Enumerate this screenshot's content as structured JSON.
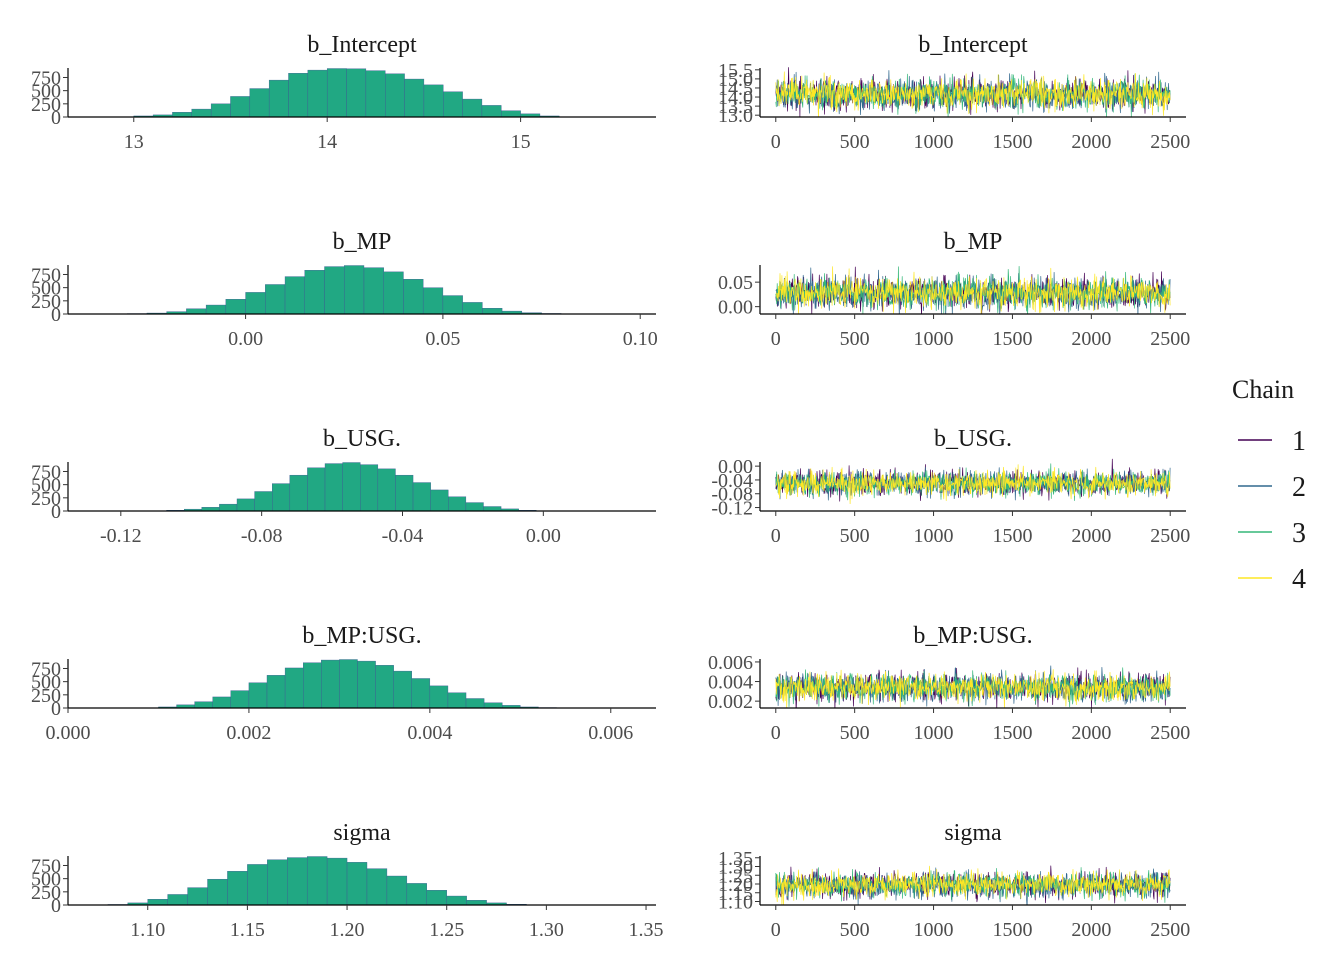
{
  "legend": {
    "title": "Chain",
    "entries": [
      {
        "label": "1",
        "color": "#440154"
      },
      {
        "label": "2",
        "color": "#31688e"
      },
      {
        "label": "3",
        "color": "#35b779"
      },
      {
        "label": "4",
        "color": "#fde725"
      }
    ]
  },
  "hist_color": "#21a883",
  "hist_edge": "#3b5b92",
  "chart_data": [
    {
      "type": "bar",
      "title": "b_Intercept",
      "xlim": [
        12.66,
        15.7
      ],
      "xticks": [
        13,
        14,
        15
      ],
      "xtick_labels": [
        "13",
        "14",
        "15"
      ],
      "ylim": [
        0,
        930
      ],
      "yticks": [
        0,
        250,
        500,
        750
      ],
      "ytick_labels": [
        "0",
        "250",
        "500",
        "750"
      ],
      "bin_edges": [
        12.9,
        13.0,
        13.1,
        13.2,
        13.3,
        13.4,
        13.5,
        13.6,
        13.7,
        13.8,
        13.9,
        14.0,
        14.1,
        14.2,
        14.3,
        14.4,
        14.5,
        14.6,
        14.7,
        14.8,
        14.9,
        15.0,
        15.1,
        15.2,
        15.3
      ],
      "values": [
        5,
        20,
        40,
        90,
        150,
        250,
        390,
        540,
        700,
        830,
        890,
        920,
        915,
        880,
        820,
        720,
        610,
        480,
        340,
        220,
        120,
        60,
        20,
        5
      ]
    },
    {
      "type": "line",
      "title": "b_Intercept",
      "xlim": [
        -100,
        2600
      ],
      "xticks": [
        0,
        500,
        1000,
        1500,
        2000,
        2500
      ],
      "xtick_labels": [
        "0",
        "500",
        "1000",
        "1500",
        "2000",
        "2500"
      ],
      "ylim": [
        12.9,
        15.6
      ],
      "yticks": [
        13.0,
        13.5,
        14.0,
        14.5,
        15.0,
        15.5
      ],
      "ytick_labels": [
        "13.0",
        "13.5",
        "14.0",
        "14.5",
        "15.0",
        "15.5"
      ],
      "center": 14.15,
      "spread": 0.42,
      "draws": 2500,
      "series": [
        {
          "name": "1"
        },
        {
          "name": "2"
        },
        {
          "name": "3"
        },
        {
          "name": "4"
        }
      ]
    },
    {
      "type": "bar",
      "title": "b_MP",
      "xlim": [
        -0.045,
        0.104
      ],
      "xticks": [
        0.0,
        0.05,
        0.1
      ],
      "xtick_labels": [
        "0.00",
        "0.05",
        "0.10"
      ],
      "ylim": [
        0,
        930
      ],
      "yticks": [
        0,
        250,
        500,
        750
      ],
      "ytick_labels": [
        "0",
        "250",
        "500",
        "750"
      ],
      "bin_edges": [
        -0.035,
        -0.03,
        -0.025,
        -0.02,
        -0.015,
        -0.01,
        -0.005,
        0.0,
        0.005,
        0.01,
        0.015,
        0.02,
        0.025,
        0.03,
        0.035,
        0.04,
        0.045,
        0.05,
        0.055,
        0.06,
        0.065,
        0.07,
        0.075,
        0.08,
        0.085
      ],
      "values": [
        3,
        8,
        18,
        45,
        100,
        170,
        280,
        410,
        560,
        710,
        830,
        900,
        920,
        880,
        800,
        660,
        500,
        350,
        220,
        110,
        55,
        25,
        10,
        4
      ]
    },
    {
      "type": "line",
      "title": "b_MP",
      "xlim": [
        -100,
        2600
      ],
      "xticks": [
        0,
        500,
        1000,
        1500,
        2000,
        2500
      ],
      "xtick_labels": [
        "0",
        "500",
        "1000",
        "1500",
        "2000",
        "2500"
      ],
      "ylim": [
        -0.015,
        0.085
      ],
      "yticks": [
        0.0,
        0.05
      ],
      "ytick_labels": [
        "0.00",
        "0.05"
      ],
      "center": 0.028,
      "spread": 0.016,
      "draws": 2500,
      "series": [
        {
          "name": "1"
        },
        {
          "name": "2"
        },
        {
          "name": "3"
        },
        {
          "name": "4"
        }
      ]
    },
    {
      "type": "bar",
      "title": "b_USG.",
      "xlim": [
        -0.135,
        0.032
      ],
      "xticks": [
        -0.12,
        -0.08,
        -0.04,
        0.0
      ],
      "xtick_labels": [
        "-0.12",
        "-0.08",
        "-0.04",
        "0.00"
      ],
      "ylim": [
        0,
        930
      ],
      "yticks": [
        0,
        250,
        500,
        750
      ],
      "ytick_labels": [
        "0",
        "250",
        "500",
        "750"
      ],
      "bin_edges": [
        -0.112,
        -0.107,
        -0.102,
        -0.097,
        -0.092,
        -0.087,
        -0.082,
        -0.077,
        -0.072,
        -0.067,
        -0.062,
        -0.057,
        -0.052,
        -0.047,
        -0.042,
        -0.037,
        -0.032,
        -0.027,
        -0.022,
        -0.017,
        -0.012,
        -0.007,
        -0.002,
        0.003
      ],
      "values": [
        5,
        15,
        35,
        70,
        130,
        230,
        370,
        520,
        680,
        820,
        900,
        920,
        880,
        800,
        680,
        540,
        400,
        270,
        160,
        85,
        40,
        15,
        5
      ]
    },
    {
      "type": "line",
      "title": "b_USG.",
      "xlim": [
        -100,
        2600
      ],
      "xticks": [
        0,
        500,
        1000,
        1500,
        2000,
        2500
      ],
      "xtick_labels": [
        "0",
        "500",
        "1000",
        "1500",
        "2000",
        "2500"
      ],
      "ylim": [
        -0.13,
        0.012
      ],
      "yticks": [
        -0.12,
        -0.08,
        -0.04,
        0.0
      ],
      "ytick_labels": [
        "-0.12",
        "-0.08",
        "-0.04",
        "0.00"
      ],
      "center": -0.05,
      "spread": 0.018,
      "draws": 2500,
      "series": [
        {
          "name": "1"
        },
        {
          "name": "2"
        },
        {
          "name": "3"
        },
        {
          "name": "4"
        }
      ]
    },
    {
      "type": "bar",
      "title": "b_MP:USG.",
      "xlim": [
        0.0,
        0.0065
      ],
      "xticks": [
        0.0,
        0.002,
        0.004,
        0.006
      ],
      "xtick_labels": [
        "0.000",
        "0.002",
        "0.004",
        "0.006"
      ],
      "ylim": [
        0,
        930
      ],
      "yticks": [
        0,
        250,
        500,
        750
      ],
      "ytick_labels": [
        "0",
        "250",
        "500",
        "750"
      ],
      "bin_edges": [
        0.001,
        0.0012,
        0.0014,
        0.0016,
        0.0018,
        0.002,
        0.0022,
        0.0024,
        0.0026,
        0.0028,
        0.003,
        0.0032,
        0.0034,
        0.0036,
        0.0038,
        0.004,
        0.0042,
        0.0044,
        0.0046,
        0.0048,
        0.005,
        0.0052,
        0.0054,
        0.0056
      ],
      "values": [
        20,
        60,
        120,
        210,
        330,
        480,
        620,
        760,
        860,
        910,
        920,
        890,
        810,
        700,
        560,
        420,
        290,
        180,
        100,
        50,
        20,
        8,
        3
      ]
    },
    {
      "type": "line",
      "title": "b_MP:USG.",
      "xlim": [
        -100,
        2600
      ],
      "xticks": [
        0,
        500,
        1000,
        1500,
        2000,
        2500
      ],
      "xtick_labels": [
        "0",
        "500",
        "1000",
        "1500",
        "2000",
        "2500"
      ],
      "ylim": [
        0.0013,
        0.0063
      ],
      "yticks": [
        0.002,
        0.004,
        0.006
      ],
      "ytick_labels": [
        "0.002",
        "0.004",
        "0.006"
      ],
      "center": 0.0034,
      "spread": 0.0007,
      "draws": 2500,
      "series": [
        {
          "name": "1"
        },
        {
          "name": "2"
        },
        {
          "name": "3"
        },
        {
          "name": "4"
        }
      ]
    },
    {
      "type": "bar",
      "title": "sigma",
      "xlim": [
        1.06,
        1.355
      ],
      "xticks": [
        1.1,
        1.15,
        1.2,
        1.25,
        1.3,
        1.35
      ],
      "xtick_labels": [
        "1.10",
        "1.15",
        "1.20",
        "1.25",
        "1.30",
        "1.35"
      ],
      "ylim": [
        0,
        930
      ],
      "yticks": [
        0,
        250,
        500,
        750
      ],
      "ytick_labels": [
        "0",
        "250",
        "500",
        "750"
      ],
      "bin_edges": [
        1.08,
        1.09,
        1.1,
        1.11,
        1.12,
        1.13,
        1.14,
        1.15,
        1.16,
        1.17,
        1.18,
        1.19,
        1.2,
        1.21,
        1.22,
        1.23,
        1.24,
        1.25,
        1.26,
        1.27,
        1.28,
        1.29,
        1.3,
        1.31
      ],
      "values": [
        10,
        40,
        110,
        200,
        330,
        490,
        640,
        770,
        860,
        900,
        920,
        890,
        810,
        690,
        550,
        410,
        280,
        170,
        90,
        40,
        15,
        5,
        2
      ]
    },
    {
      "type": "line",
      "title": "sigma",
      "xlim": [
        -100,
        2600
      ],
      "xticks": [
        0,
        500,
        1000,
        1500,
        2000,
        2500
      ],
      "xtick_labels": [
        "0",
        "500",
        "1000",
        "1500",
        "2000",
        "2500"
      ],
      "ylim": [
        1.08,
        1.36
      ],
      "yticks": [
        1.1,
        1.15,
        1.2,
        1.25,
        1.3,
        1.35
      ],
      "ytick_labels": [
        "1.10",
        "1.15",
        "1.20",
        "1.25",
        "1.30",
        "1.35"
      ],
      "center": 1.195,
      "spread": 0.036,
      "draws": 2500,
      "series": [
        {
          "name": "1"
        },
        {
          "name": "2"
        },
        {
          "name": "3"
        },
        {
          "name": "4"
        }
      ]
    }
  ]
}
